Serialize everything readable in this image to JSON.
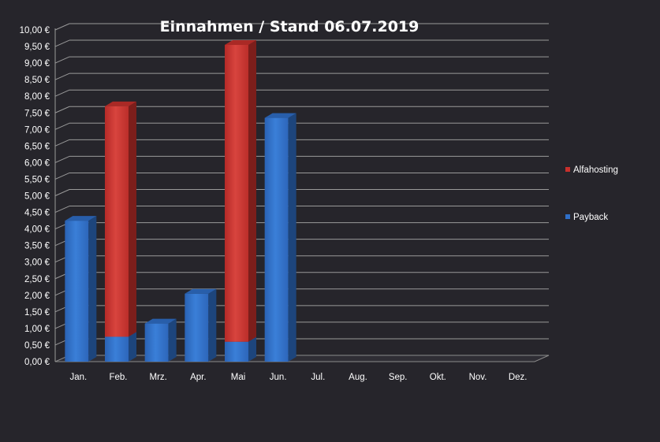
{
  "chart_data": {
    "type": "bar",
    "stacked": true,
    "three_d": true,
    "title": "Einnahmen / Stand 06.07.2019",
    "categories": [
      "Jan.",
      "Feb.",
      "Mrz.",
      "Apr.",
      "Mai",
      "Jun.",
      "Jul.",
      "Aug.",
      "Sep.",
      "Okt.",
      "Nov.",
      "Dez."
    ],
    "series": [
      {
        "name": "Payback",
        "color": "#2f6fc8",
        "values": [
          4.25,
          0.75,
          1.15,
          2.05,
          0.6,
          7.35,
          0,
          0,
          0,
          0,
          0,
          0
        ]
      },
      {
        "name": "Alfahosting",
        "color": "#c8302c",
        "values": [
          0,
          6.95,
          0,
          0,
          8.95,
          0,
          0,
          0,
          0,
          0,
          0,
          0
        ]
      }
    ],
    "ylim": [
      0,
      10
    ],
    "yticks": [
      "0,00 €",
      "0,50 €",
      "1,00 €",
      "1,50 €",
      "2,00 €",
      "2,50 €",
      "3,00 €",
      "3,50 €",
      "4,00 €",
      "4,50 €",
      "5,00 €",
      "5,50 €",
      "6,00 €",
      "6,50 €",
      "7,00 €",
      "7,50 €",
      "8,00 €",
      "8,50 €",
      "9,00 €",
      "9,50 €",
      "10,00 €"
    ],
    "grid": true,
    "legend_position": "right",
    "legend_order": [
      "Alfahosting",
      "Payback"
    ]
  }
}
